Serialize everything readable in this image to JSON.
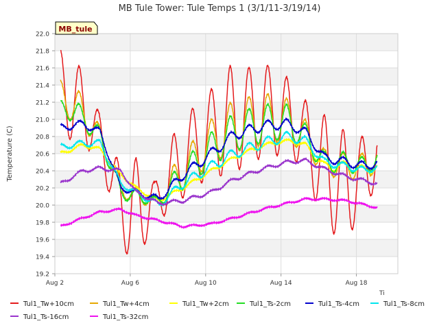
{
  "chart_data": {
    "type": "line",
    "title": "MB Tule Tower: Tule Temps 1 (3/1/11-3/19/14)",
    "ylabel": "Temperature (C)",
    "xlabel": "",
    "site_badge": "MB_tule",
    "corner_label": "Ti",
    "ylim": [
      19.2,
      22.0
    ],
    "yticks": [
      "19.2",
      "19.4",
      "19.6",
      "19.8",
      "20.0",
      "20.2",
      "20.4",
      "20.6",
      "20.8",
      "21.0",
      "21.2",
      "21.4",
      "21.6",
      "21.8",
      "22.0"
    ],
    "xlim": [
      2.0,
      20.2
    ],
    "xticks": [
      {
        "label": "Aug 2",
        "value": 2
      },
      {
        "label": "Aug 6",
        "value": 6
      },
      {
        "label": "Aug 10",
        "value": 10
      },
      {
        "label": "Aug 14",
        "value": 14
      },
      {
        "label": "Aug 18",
        "value": 18
      }
    ],
    "x_start": 2.3,
    "x_end": 19.1,
    "grid": true,
    "legend_position": "bottom",
    "series": [
      {
        "name": "Tul1_Tw+10cm",
        "color": "#e41a1c",
        "baseline": [
          [
            2.3,
            21.3
          ],
          [
            3.2,
            21.2
          ],
          [
            4.4,
            20.8
          ],
          [
            5.5,
            20.0
          ],
          [
            6.3,
            19.9
          ],
          [
            7.5,
            20.1
          ],
          [
            8.8,
            20.55
          ],
          [
            10.3,
            20.85
          ],
          [
            11.5,
            21.0
          ],
          [
            13.0,
            21.1
          ],
          [
            14.3,
            21.05
          ],
          [
            15.3,
            20.8
          ],
          [
            16.3,
            20.4
          ],
          [
            17.5,
            20.2
          ],
          [
            18.5,
            20.4
          ],
          [
            19.1,
            20.6
          ]
        ],
        "amplitude": [
          [
            2.3,
            0.5
          ],
          [
            3.3,
            0.45
          ],
          [
            4.4,
            0.25
          ],
          [
            5.3,
            0.4
          ],
          [
            6.3,
            0.65
          ],
          [
            7.3,
            0.2
          ],
          [
            8.3,
            0.45
          ],
          [
            10.3,
            0.5
          ],
          [
            11.3,
            0.65
          ],
          [
            12.3,
            0.55
          ],
          [
            13.2,
            0.55
          ],
          [
            14.2,
            0.45
          ],
          [
            15.2,
            0.4
          ],
          [
            16.3,
            0.65
          ],
          [
            17.3,
            0.65
          ],
          [
            18.2,
            0.45
          ],
          [
            19.1,
            0.35
          ]
        ]
      },
      {
        "name": "Tul1_Tw+4cm",
        "color": "#e6a800",
        "baseline": [
          [
            2.3,
            21.25
          ],
          [
            3.2,
            21.15
          ],
          [
            4.4,
            20.8
          ],
          [
            5.5,
            20.2
          ],
          [
            6.3,
            20.1
          ],
          [
            7.5,
            20.05
          ],
          [
            8.8,
            20.4
          ],
          [
            10.3,
            20.75
          ],
          [
            11.5,
            20.92
          ],
          [
            13.0,
            21.0
          ],
          [
            14.3,
            21.0
          ],
          [
            15.3,
            20.8
          ],
          [
            16.3,
            20.5
          ],
          [
            17.5,
            20.45
          ],
          [
            18.5,
            20.45
          ],
          [
            19.1,
            20.55
          ]
        ],
        "amplitude": [
          [
            2.3,
            0.2
          ],
          [
            3.3,
            0.2
          ],
          [
            4.4,
            0.12
          ],
          [
            5.3,
            0.1
          ],
          [
            6.3,
            0.1
          ],
          [
            7.3,
            0.05
          ],
          [
            8.3,
            0.2
          ],
          [
            10.3,
            0.25
          ],
          [
            11.3,
            0.3
          ],
          [
            12.3,
            0.3
          ],
          [
            13.2,
            0.3
          ],
          [
            14.2,
            0.25
          ],
          [
            15.2,
            0.2
          ],
          [
            16.3,
            0.15
          ],
          [
            17.3,
            0.15
          ],
          [
            18.2,
            0.15
          ],
          [
            19.1,
            0.15
          ]
        ]
      },
      {
        "name": "Tul1_Tw+2cm",
        "color": "#ffff00",
        "baseline": [
          [
            2.3,
            20.6
          ],
          [
            3.5,
            20.7
          ],
          [
            4.4,
            20.65
          ],
          [
            5.3,
            20.4
          ],
          [
            6.3,
            20.2
          ],
          [
            7.5,
            20.05
          ],
          [
            8.8,
            20.2
          ],
          [
            10.3,
            20.4
          ],
          [
            11.5,
            20.55
          ],
          [
            12.5,
            20.65
          ],
          [
            13.5,
            20.72
          ],
          [
            14.5,
            20.75
          ],
          [
            15.3,
            20.7
          ],
          [
            16.3,
            20.45
          ],
          [
            17.5,
            20.45
          ],
          [
            18.5,
            20.4
          ],
          [
            19.1,
            20.45
          ]
        ],
        "amplitude": [
          [
            2.3,
            0.02
          ],
          [
            10.0,
            0.02
          ],
          [
            15.0,
            0.02
          ],
          [
            16.3,
            0.05
          ],
          [
            17.3,
            0.06
          ],
          [
            19.1,
            0.05
          ]
        ]
      },
      {
        "name": "Tul1_Ts-2cm",
        "color": "#22dd22",
        "baseline": [
          [
            2.3,
            21.12
          ],
          [
            3.2,
            21.08
          ],
          [
            4.4,
            20.8
          ],
          [
            5.5,
            20.15
          ],
          [
            6.3,
            20.1
          ],
          [
            7.5,
            20.05
          ],
          [
            8.8,
            20.35
          ],
          [
            10.3,
            20.65
          ],
          [
            11.5,
            20.85
          ],
          [
            13.0,
            20.95
          ],
          [
            14.3,
            20.98
          ],
          [
            15.3,
            20.8
          ],
          [
            16.3,
            20.5
          ],
          [
            17.5,
            20.5
          ],
          [
            18.5,
            20.45
          ],
          [
            19.1,
            20.55
          ]
        ],
        "amplitude": [
          [
            2.3,
            0.1
          ],
          [
            3.3,
            0.12
          ],
          [
            4.4,
            0.1
          ],
          [
            5.3,
            0.08
          ],
          [
            6.3,
            0.08
          ],
          [
            7.3,
            0.04
          ],
          [
            8.3,
            0.15
          ],
          [
            10.3,
            0.2
          ],
          [
            11.3,
            0.22
          ],
          [
            12.3,
            0.22
          ],
          [
            13.2,
            0.22
          ],
          [
            14.2,
            0.2
          ],
          [
            15.2,
            0.15
          ],
          [
            16.3,
            0.12
          ],
          [
            17.3,
            0.12
          ],
          [
            18.2,
            0.1
          ],
          [
            19.1,
            0.1
          ]
        ]
      },
      {
        "name": "Tul1_Ts-4cm",
        "color": "#0000cc",
        "baseline": [
          [
            2.3,
            20.9
          ],
          [
            3.5,
            20.95
          ],
          [
            4.4,
            20.85
          ],
          [
            5.5,
            20.2
          ],
          [
            6.3,
            20.15
          ],
          [
            7.5,
            20.07
          ],
          [
            8.8,
            20.35
          ],
          [
            10.3,
            20.6
          ],
          [
            11.5,
            20.82
          ],
          [
            13.0,
            20.92
          ],
          [
            14.3,
            20.95
          ],
          [
            15.3,
            20.85
          ],
          [
            16.3,
            20.55
          ],
          [
            17.5,
            20.5
          ],
          [
            18.5,
            20.45
          ],
          [
            19.1,
            20.5
          ]
        ],
        "amplitude": [
          [
            2.3,
            0.04
          ],
          [
            4.4,
            0.04
          ],
          [
            6.3,
            0.03
          ],
          [
            8.3,
            0.05
          ],
          [
            10.3,
            0.06
          ],
          [
            13.2,
            0.06
          ],
          [
            15.2,
            0.05
          ],
          [
            17.3,
            0.05
          ],
          [
            19.1,
            0.05
          ]
        ]
      },
      {
        "name": "Tul1_Ts-8cm",
        "color": "#00e5ee",
        "baseline": [
          [
            2.3,
            20.68
          ],
          [
            3.5,
            20.72
          ],
          [
            4.4,
            20.72
          ],
          [
            5.5,
            20.25
          ],
          [
            6.3,
            20.15
          ],
          [
            7.5,
            20.0
          ],
          [
            8.8,
            20.25
          ],
          [
            10.3,
            20.45
          ],
          [
            11.5,
            20.6
          ],
          [
            13.0,
            20.72
          ],
          [
            14.3,
            20.8
          ],
          [
            15.3,
            20.75
          ],
          [
            16.3,
            20.5
          ],
          [
            17.5,
            20.45
          ],
          [
            18.5,
            20.4
          ],
          [
            19.1,
            20.45
          ]
        ],
        "amplitude": [
          [
            2.3,
            0.03
          ],
          [
            4.4,
            0.04
          ],
          [
            6.3,
            0.03
          ],
          [
            8.3,
            0.05
          ],
          [
            10.3,
            0.06
          ],
          [
            13.2,
            0.06
          ],
          [
            15.2,
            0.05
          ],
          [
            17.3,
            0.04
          ],
          [
            19.1,
            0.04
          ]
        ]
      },
      {
        "name": "Tul1_Ts-16cm",
        "color": "#9933cc",
        "baseline": [
          [
            2.3,
            20.25
          ],
          [
            3.5,
            20.4
          ],
          [
            4.4,
            20.43
          ],
          [
            5.5,
            20.4
          ],
          [
            6.3,
            20.15
          ],
          [
            7.5,
            20.02
          ],
          [
            8.8,
            20.05
          ],
          [
            10.3,
            20.15
          ],
          [
            11.5,
            20.3
          ],
          [
            13.0,
            20.42
          ],
          [
            14.3,
            20.5
          ],
          [
            15.3,
            20.52
          ],
          [
            16.3,
            20.42
          ],
          [
            17.5,
            20.33
          ],
          [
            18.5,
            20.28
          ],
          [
            19.1,
            20.25
          ]
        ],
        "amplitude": [
          [
            2.3,
            0.02
          ],
          [
            19.1,
            0.02
          ]
        ]
      },
      {
        "name": "Tul1_Ts-32cm",
        "color": "#ee11ee",
        "baseline": [
          [
            2.3,
            19.75
          ],
          [
            3.5,
            19.85
          ],
          [
            4.4,
            19.92
          ],
          [
            5.5,
            19.95
          ],
          [
            6.3,
            19.88
          ],
          [
            7.5,
            19.82
          ],
          [
            8.8,
            19.75
          ],
          [
            10.3,
            19.78
          ],
          [
            11.5,
            19.85
          ],
          [
            13.0,
            19.95
          ],
          [
            14.3,
            20.02
          ],
          [
            15.3,
            20.07
          ],
          [
            16.3,
            20.07
          ],
          [
            17.5,
            20.05
          ],
          [
            18.5,
            20.0
          ],
          [
            19.1,
            19.97
          ]
        ],
        "amplitude": [
          [
            2.3,
            0.01
          ],
          [
            19.1,
            0.01
          ]
        ]
      }
    ]
  }
}
